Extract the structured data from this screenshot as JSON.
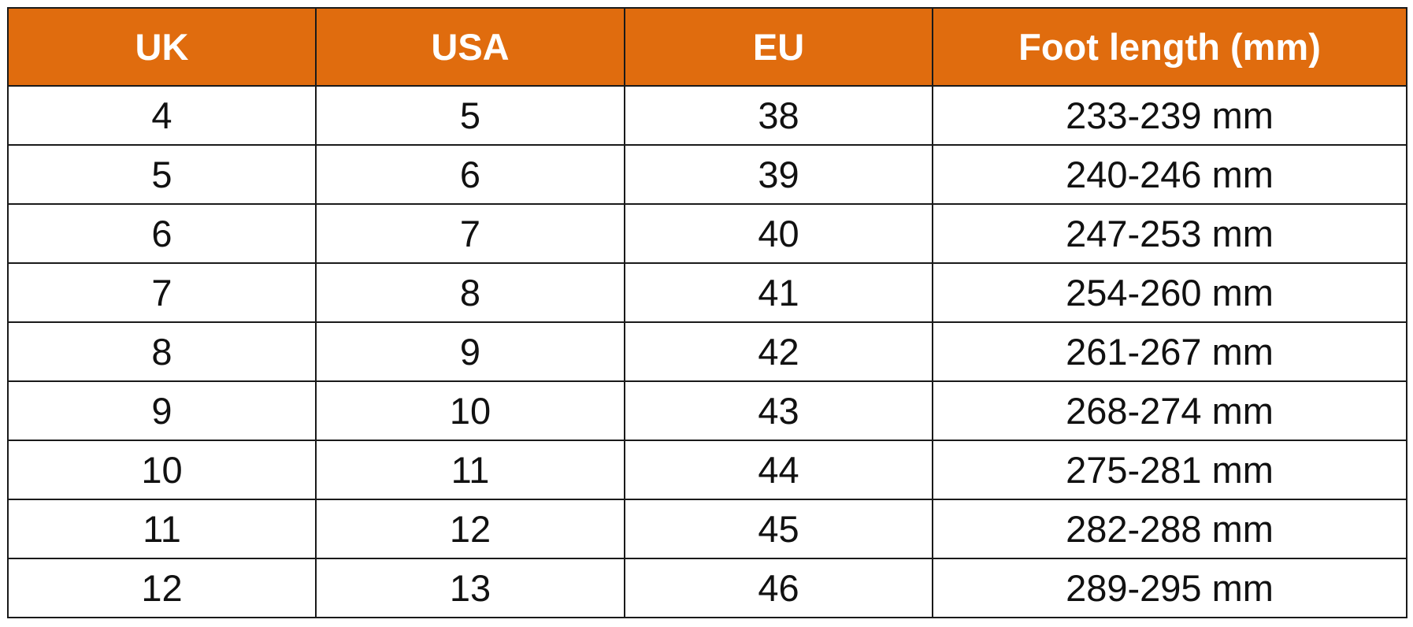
{
  "table": {
    "header_color": "#E06C0E",
    "headers": [
      "UK",
      "USA",
      "EU",
      "Foot length (mm)"
    ],
    "rows": [
      [
        "4",
        "5",
        "38",
        "233-239 mm"
      ],
      [
        "5",
        "6",
        "39",
        "240-246 mm"
      ],
      [
        "6",
        "7",
        "40",
        "247-253 mm"
      ],
      [
        "7",
        "8",
        "41",
        "254-260 mm"
      ],
      [
        "8",
        "9",
        "42",
        "261-267 mm"
      ],
      [
        "9",
        "10",
        "43",
        "268-274 mm"
      ],
      [
        "10",
        "11",
        "44",
        "275-281 mm"
      ],
      [
        "11",
        "12",
        "45",
        "282-288 mm"
      ],
      [
        "12",
        "13",
        "46",
        "289-295 mm"
      ]
    ]
  }
}
